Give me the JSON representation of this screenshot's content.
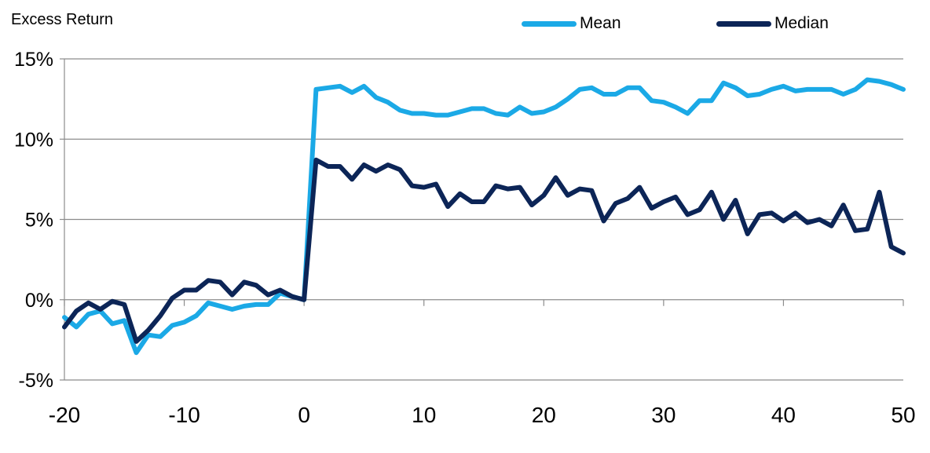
{
  "chart_data": {
    "type": "line",
    "ylabel": "Excess Return",
    "xlabel": "",
    "title": "",
    "xlim": [
      -20,
      50
    ],
    "ylim": [
      -5,
      15
    ],
    "xticks": [
      -20,
      -10,
      0,
      10,
      20,
      30,
      40,
      50
    ],
    "yticks": [
      -5,
      0,
      5,
      10,
      15
    ],
    "ytick_labels": [
      "-5%",
      "0%",
      "5%",
      "10%",
      "15%"
    ],
    "grid": "horizontal",
    "legend_position": "top-right",
    "x": [
      -20,
      -19,
      -18,
      -17,
      -16,
      -15,
      -14,
      -13,
      -12,
      -11,
      -10,
      -9,
      -8,
      -7,
      -6,
      -5,
      -4,
      -3,
      -2,
      -1,
      0,
      1,
      2,
      3,
      4,
      5,
      6,
      7,
      8,
      9,
      10,
      11,
      12,
      13,
      14,
      15,
      16,
      17,
      18,
      19,
      20,
      21,
      22,
      23,
      24,
      25,
      26,
      27,
      28,
      29,
      30,
      31,
      32,
      33,
      34,
      35,
      36,
      37,
      38,
      39,
      40,
      41,
      42,
      43,
      44,
      45,
      46,
      47,
      48,
      49,
      50
    ],
    "series": [
      {
        "name": "Mean",
        "color": "#1BA9E6",
        "values": [
          -1.1,
          -1.7,
          -0.9,
          -0.7,
          -1.5,
          -1.3,
          -3.3,
          -2.2,
          -2.3,
          -1.6,
          -1.4,
          -1.0,
          -0.2,
          -0.4,
          -0.6,
          -0.4,
          -0.3,
          -0.3,
          0.4,
          0.2,
          0.0,
          13.1,
          13.2,
          13.3,
          12.9,
          13.3,
          12.6,
          12.3,
          11.8,
          11.6,
          11.6,
          11.5,
          11.5,
          11.7,
          11.9,
          11.9,
          11.6,
          11.5,
          12.0,
          11.6,
          11.7,
          12.0,
          12.5,
          13.1,
          13.2,
          12.8,
          12.8,
          13.2,
          13.2,
          12.4,
          12.3,
          12.0,
          11.6,
          12.4,
          12.4,
          13.5,
          13.2,
          12.7,
          12.8,
          13.1,
          13.3,
          13.0,
          13.1,
          13.1,
          13.1,
          12.8,
          13.1,
          13.7,
          13.6,
          13.4,
          13.1
        ]
      },
      {
        "name": "Median",
        "color": "#0C2557",
        "values": [
          -1.7,
          -0.7,
          -0.2,
          -0.6,
          -0.1,
          -0.3,
          -2.6,
          -1.9,
          -1.0,
          0.1,
          0.6,
          0.6,
          1.2,
          1.1,
          0.3,
          1.1,
          0.9,
          0.3,
          0.6,
          0.2,
          0.0,
          8.7,
          8.3,
          8.3,
          7.5,
          8.4,
          8.0,
          8.4,
          8.1,
          7.1,
          7.0,
          7.2,
          5.8,
          6.6,
          6.1,
          6.1,
          7.1,
          6.9,
          7.0,
          5.9,
          6.5,
          7.6,
          6.5,
          6.9,
          6.8,
          4.9,
          6.0,
          6.3,
          7.0,
          5.7,
          6.1,
          6.4,
          5.3,
          5.6,
          6.7,
          5.0,
          6.2,
          4.1,
          5.3,
          5.4,
          4.9,
          5.4,
          4.8,
          5.0,
          4.6,
          5.9,
          4.3,
          4.4,
          6.7,
          3.3,
          2.9
        ]
      }
    ]
  }
}
